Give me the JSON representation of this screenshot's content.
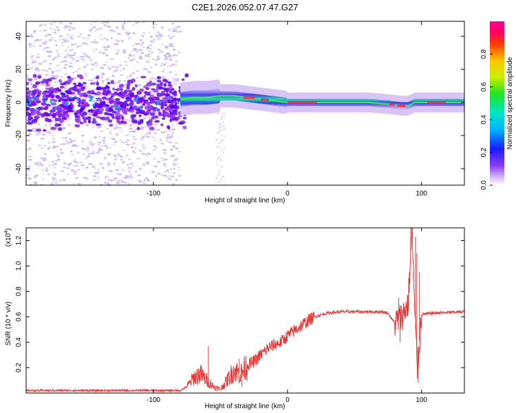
{
  "title": "C2E1.2026.052.07.47.G27",
  "chart_data": [
    {
      "type": "heatmap",
      "name": "spectrogram",
      "xlabel": "Height of straight line (km)",
      "ylabel": "Frequency (Hz)",
      "xlim": [
        -195,
        132
      ],
      "ylim": [
        -50,
        49
      ],
      "xticks": [
        -100,
        0,
        100
      ],
      "xtick_labels": [
        "-100",
        "0",
        "100"
      ],
      "yticks": [
        -40,
        -20,
        0,
        20,
        40
      ],
      "ytick_labels": [
        "-40",
        "-20",
        "0",
        "20",
        "40"
      ],
      "ridge": {
        "x": [
          -195,
          -150,
          -100,
          -80,
          -70,
          -60,
          -50,
          -40,
          -30,
          -20,
          -10,
          0,
          20,
          40,
          60,
          75,
          85,
          90,
          95,
          110,
          132
        ],
        "y": [
          0,
          0,
          0,
          2,
          3,
          3,
          4,
          4,
          3,
          2,
          1,
          0,
          0,
          0,
          0,
          -1,
          -2,
          -2,
          0,
          0,
          0
        ]
      },
      "colorbar": {
        "label": "Normalized spectral amplitude",
        "range": [
          0,
          1
        ],
        "ticks": [
          0.0,
          0.2,
          0.4,
          0.6,
          0.8
        ],
        "tick_labels": [
          "0.0",
          "0.2",
          "0.4",
          "0.6",
          "0.8"
        ]
      }
    },
    {
      "type": "line",
      "name": "snr",
      "xlabel": "Height of straight line (km)",
      "ylabel": "SNR (10 * v/v)",
      "y_multiplier": "(x10",
      "y_multiplier_exp": "4",
      "xlim": [
        -195,
        132
      ],
      "ylim": [
        0,
        1.3
      ],
      "xticks": [
        -100,
        0,
        100
      ],
      "xtick_labels": [
        "-100",
        "0",
        "100"
      ],
      "yticks": [
        0.2,
        0.4,
        0.6,
        0.8,
        1.0,
        1.2
      ],
      "ytick_labels": [
        "0.2",
        "0.4",
        "0.6",
        "0.8",
        "1.0",
        "1.2"
      ],
      "color": "#ee3333",
      "trend": {
        "x": [
          -195,
          -80,
          -75,
          -70,
          -65,
          -60,
          -55,
          -50,
          -45,
          -40,
          -35,
          -30,
          -25,
          -20,
          -15,
          -10,
          -5,
          0,
          10,
          20,
          30,
          40,
          50,
          60,
          70,
          75,
          80,
          85,
          90,
          93,
          95,
          97,
          100,
          110,
          132
        ],
        "y": [
          0.02,
          0.02,
          0.05,
          0.12,
          0.15,
          0.1,
          0.05,
          0.03,
          0.1,
          0.18,
          0.15,
          0.22,
          0.25,
          0.3,
          0.35,
          0.38,
          0.4,
          0.45,
          0.53,
          0.6,
          0.63,
          0.64,
          0.64,
          0.64,
          0.64,
          0.63,
          0.55,
          0.6,
          0.7,
          1.3,
          0.6,
          0.2,
          0.62,
          0.63,
          0.64
        ]
      },
      "spikes": [
        {
          "x": 92,
          "y": 1.3
        },
        {
          "x": 94,
          "y": 0.9
        },
        {
          "x": 95.5,
          "y": 1.23
        },
        {
          "x": 96.5,
          "y": 1.1
        },
        {
          "x": 97.5,
          "y": 0.08
        },
        {
          "x": 98.5,
          "y": 0.95
        },
        {
          "x": 84,
          "y": 0.4
        },
        {
          "x": 83,
          "y": 0.75
        },
        {
          "x": -59,
          "y": 0.37
        },
        {
          "x": -57,
          "y": 0.08
        },
        {
          "x": -52,
          "y": 0.05
        },
        {
          "x": -36,
          "y": 0.27
        },
        {
          "x": -34,
          "y": 0.05
        }
      ]
    }
  ]
}
